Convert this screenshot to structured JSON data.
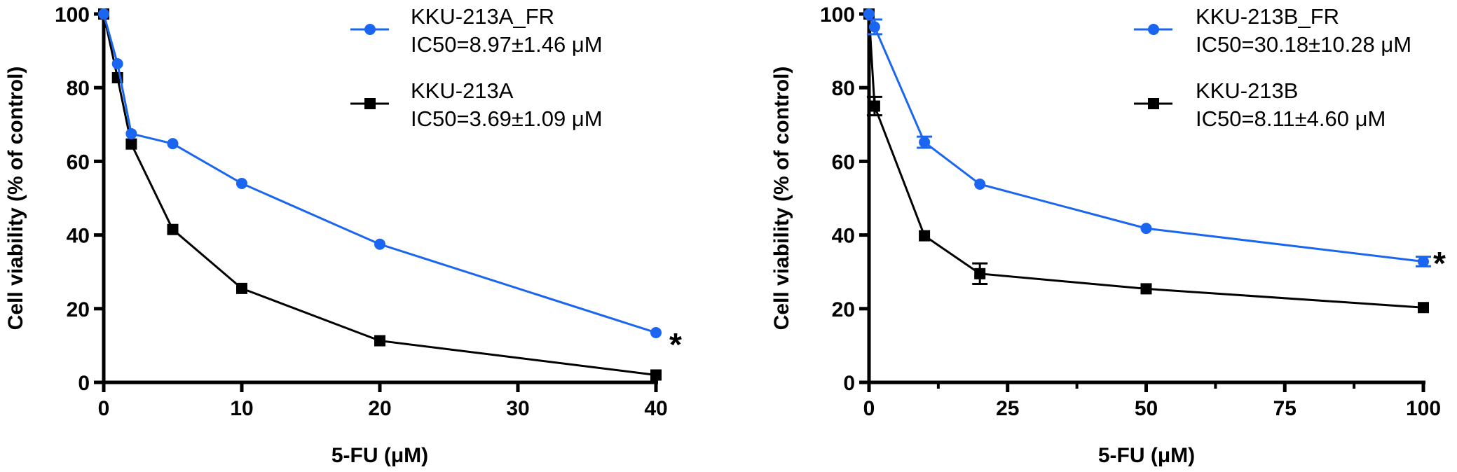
{
  "chart_data": [
    {
      "type": "line",
      "title": "",
      "xlabel": "5-FU (μM)",
      "ylabel": "Cell viability (% of control)",
      "xlim": [
        0,
        40
      ],
      "ylim": [
        0,
        100
      ],
      "xticks": [
        0,
        10,
        20,
        30,
        40
      ],
      "yticks": [
        0,
        20,
        40,
        60,
        80,
        100
      ],
      "grid": false,
      "legend_position": "top-right",
      "annotation": "*",
      "series": [
        {
          "name": "KKU-213A_FR",
          "legend_line2": "IC50=8.97±1.46 μM",
          "color": "#1a66f0",
          "marker": "circle",
          "x": [
            0,
            1,
            2,
            5,
            10,
            20,
            40
          ],
          "y": [
            100,
            86.5,
            67.5,
            64.8,
            54,
            37.5,
            13.5
          ],
          "err": [
            0,
            0,
            0,
            0,
            0,
            0,
            0
          ]
        },
        {
          "name": "KKU-213A",
          "legend_line2": "IC50=3.69±1.09 μM",
          "color": "#000000",
          "marker": "square",
          "x": [
            0,
            1,
            2,
            5,
            10,
            20,
            40
          ],
          "y": [
            100,
            82.7,
            64.7,
            41.5,
            25.5,
            11.3,
            2
          ],
          "err": [
            0,
            0,
            0,
            0,
            0,
            0,
            0
          ]
        }
      ]
    },
    {
      "type": "line",
      "title": "",
      "xlabel": "5-FU (μM)",
      "ylabel": "Cell viability (% of control)",
      "xlim": [
        0,
        100
      ],
      "ylim": [
        0,
        100
      ],
      "xticks": [
        0,
        25,
        50,
        75,
        100
      ],
      "xminor": [
        12.5,
        37.5,
        62.5,
        87.5
      ],
      "yticks": [
        0,
        20,
        40,
        60,
        80,
        100
      ],
      "grid": false,
      "legend_position": "top-right",
      "annotation": "*",
      "series": [
        {
          "name": "KKU-213B_FR",
          "legend_line2": "IC50=30.18±10.28 μM",
          "color": "#1a66f0",
          "marker": "circle",
          "x": [
            0,
            1,
            10,
            20,
            50,
            100
          ],
          "y": [
            100,
            96.5,
            65.2,
            53.8,
            41.8,
            32.8
          ],
          "err": [
            0,
            2,
            1.5,
            0,
            0,
            1.3
          ]
        },
        {
          "name": "KKU-213B",
          "legend_line2": "IC50=8.11±4.60 μM",
          "color": "#000000",
          "marker": "square",
          "x": [
            0,
            1,
            10,
            20,
            50,
            100
          ],
          "y": [
            100,
            75,
            39.8,
            29.5,
            25.4,
            20.3
          ],
          "err": [
            0,
            2.5,
            0,
            2.8,
            0,
            0
          ]
        }
      ]
    }
  ]
}
